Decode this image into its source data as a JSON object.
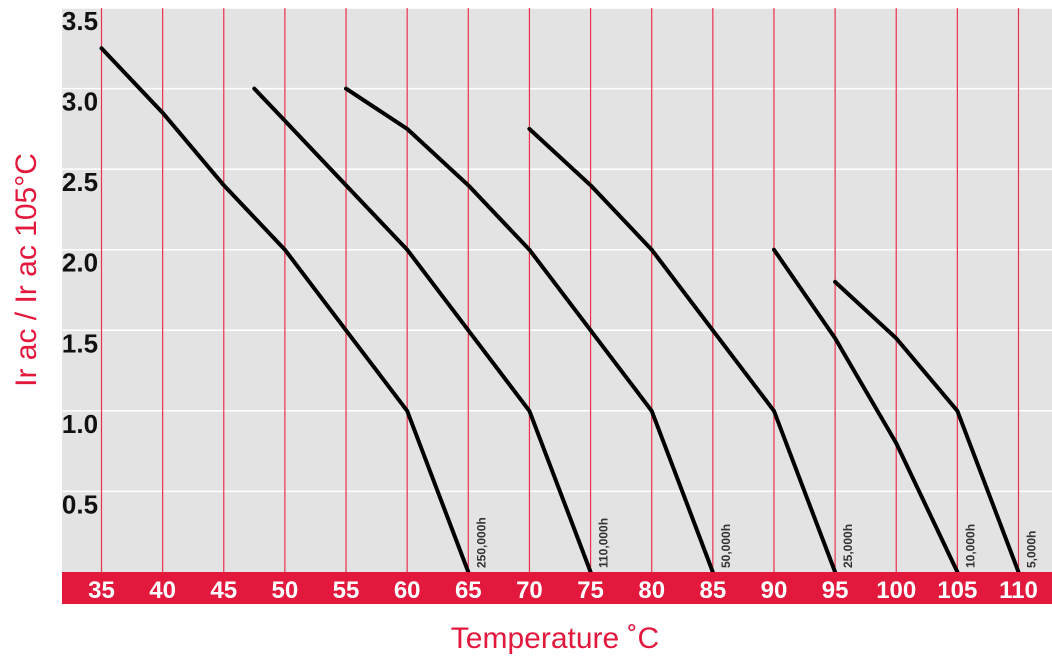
{
  "chart_data": {
    "type": "line",
    "title": "",
    "xlabel": "Temperature ˚C",
    "ylabel": "Ir ac / Ir ac 105°C",
    "xlim": [
      35,
      110
    ],
    "ylim": [
      0,
      3.5
    ],
    "x_ticks": [
      "35",
      "40",
      "45",
      "50",
      "55",
      "60",
      "65",
      "70",
      "75",
      "80",
      "85",
      "90",
      "95",
      "100",
      "105",
      "110"
    ],
    "y_ticks": [
      "0.5",
      "1.0",
      "1.5",
      "2.0",
      "2.5",
      "3.0",
      "3.5"
    ],
    "grid": true,
    "series": [
      {
        "name": "250,000h",
        "points": [
          [
            35,
            3.25
          ],
          [
            40,
            2.85
          ],
          [
            45,
            2.4
          ],
          [
            50,
            2.0
          ],
          [
            55,
            1.5
          ],
          [
            60,
            1.0
          ],
          [
            62.5,
            0.5
          ],
          [
            65,
            0
          ]
        ]
      },
      {
        "name": "110,000h",
        "points": [
          [
            47.5,
            3.0
          ],
          [
            50,
            2.8
          ],
          [
            55,
            2.4
          ],
          [
            60,
            2.0
          ],
          [
            65,
            1.5
          ],
          [
            70,
            1.0
          ],
          [
            72.5,
            0.5
          ],
          [
            75,
            0
          ]
        ]
      },
      {
        "name": "50,000h",
        "points": [
          [
            55,
            3.0
          ],
          [
            60,
            2.75
          ],
          [
            65,
            2.4
          ],
          [
            70,
            2.0
          ],
          [
            75,
            1.5
          ],
          [
            80,
            1.0
          ],
          [
            82.5,
            0.5
          ],
          [
            85,
            0
          ]
        ]
      },
      {
        "name": "25,000h",
        "points": [
          [
            70,
            2.75
          ],
          [
            75,
            2.4
          ],
          [
            80,
            2.0
          ],
          [
            85,
            1.5
          ],
          [
            90,
            1.0
          ],
          [
            92.5,
            0.5
          ],
          [
            95,
            0
          ]
        ]
      },
      {
        "name": "10,000h",
        "points": [
          [
            90,
            2.0
          ],
          [
            95,
            1.45
          ],
          [
            100,
            0.8
          ],
          [
            105,
            0
          ]
        ]
      },
      {
        "name": "5,000h",
        "points": [
          [
            95,
            1.8
          ],
          [
            100,
            1.45
          ],
          [
            105,
            1.0
          ],
          [
            110,
            0
          ]
        ]
      }
    ],
    "colors": {
      "background": "#e3e3e3",
      "grid_vertical": "#e8334f",
      "grid_horizontal": "#ffffff",
      "axis_band": "#e2183c",
      "line": "#000000",
      "axis_title": "#e2183c"
    }
  }
}
